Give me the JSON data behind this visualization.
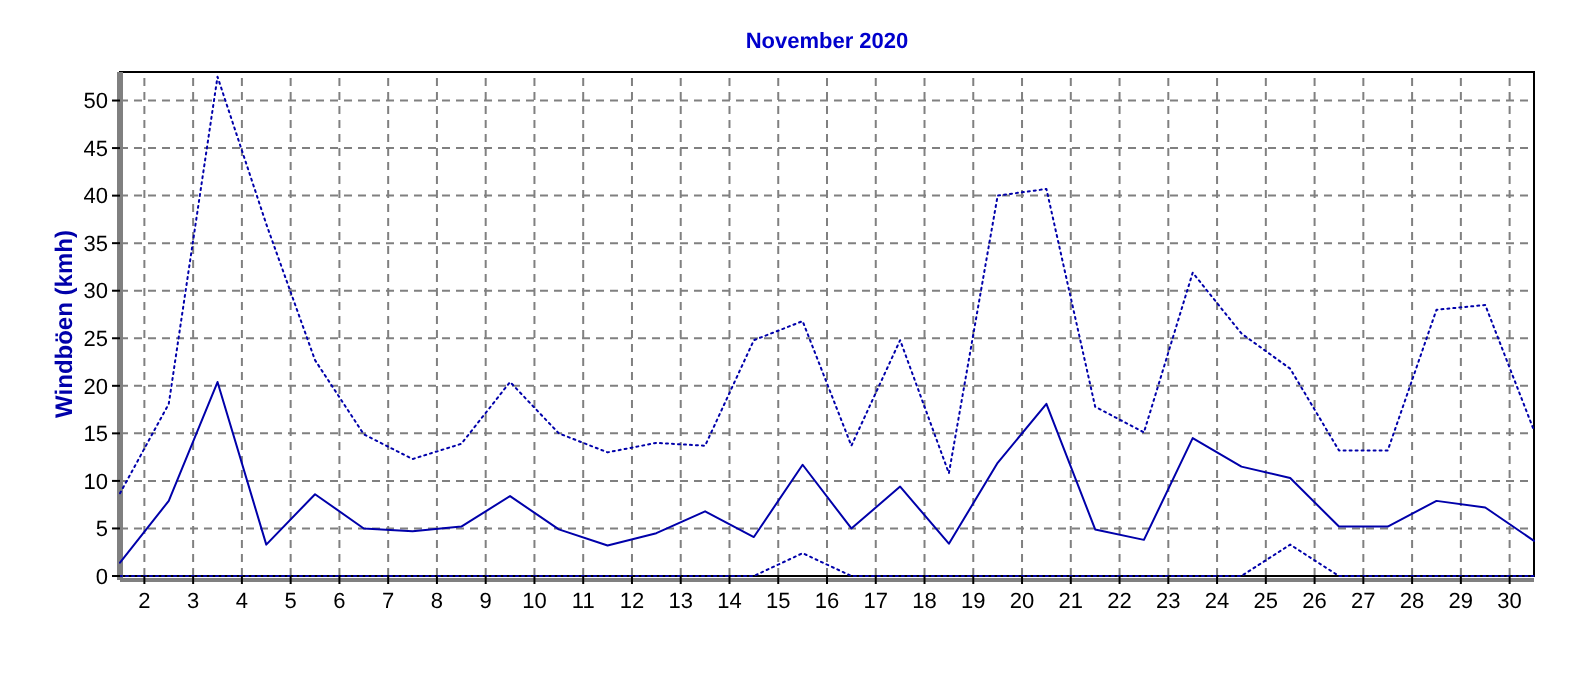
{
  "chart_data": {
    "type": "line",
    "title": "November 2020",
    "ylabel": "Windböen (kmh)",
    "x": [
      1.5,
      2.5,
      3.5,
      4.5,
      5.5,
      6.5,
      7.5,
      8.5,
      9.5,
      10.5,
      11.5,
      12.5,
      13.5,
      14.5,
      15.5,
      16.5,
      17.5,
      18.5,
      19.5,
      20.5,
      21.5,
      22.5,
      23.5,
      24.5,
      25.5,
      26.5,
      27.5,
      28.5,
      29.5,
      30.5
    ],
    "series": [
      {
        "color": "#0000aa",
        "line_style": "dotted",
        "values": [
          8.7,
          18.1,
          52.5,
          37,
          22.7,
          14.9,
          12.3,
          13.9,
          20.4,
          15.0,
          13.0,
          14.0,
          13.7,
          24.8,
          26.8,
          13.7,
          24.8,
          10.8,
          40.0,
          40.7,
          17.8,
          15.1,
          31.9,
          25.5,
          21.8,
          13.2,
          13.2,
          28.0,
          28.5,
          15.3
        ]
      },
      {
        "color": "#0000aa",
        "line_style": "solid",
        "values": [
          1.4,
          7.9,
          20.4,
          3.3,
          8.6,
          5.0,
          4.7,
          5.2,
          8.4,
          4.9,
          3.2,
          4.5,
          6.8,
          4.1,
          11.7,
          5.0,
          9.4,
          3.4,
          11.9,
          18.1,
          4.9,
          3.8,
          14.5,
          11.5,
          10.3,
          5.2,
          5.2,
          7.9,
          7.2,
          3.7
        ]
      },
      {
        "color": "#0000aa",
        "line_style": "dotted",
        "values": [
          0,
          0,
          0,
          0,
          0,
          0,
          0,
          0,
          0,
          0,
          0,
          0,
          0,
          0,
          2.4,
          0,
          0,
          0,
          0,
          0,
          0,
          0,
          0,
          0,
          3.3,
          0,
          0,
          0,
          0,
          0
        ]
      }
    ],
    "xlim": [
      1.5,
      30.5
    ],
    "xticks": [
      2,
      3,
      4,
      5,
      6,
      7,
      8,
      9,
      10,
      11,
      12,
      13,
      14,
      15,
      16,
      17,
      18,
      19,
      20,
      21,
      22,
      23,
      24,
      25,
      26,
      27,
      28,
      29,
      30
    ],
    "ylim": [
      0,
      53
    ],
    "yticks": [
      0,
      5,
      10,
      15,
      20,
      25,
      30,
      35,
      40,
      45,
      50
    ],
    "grid": true,
    "marker": "none"
  }
}
